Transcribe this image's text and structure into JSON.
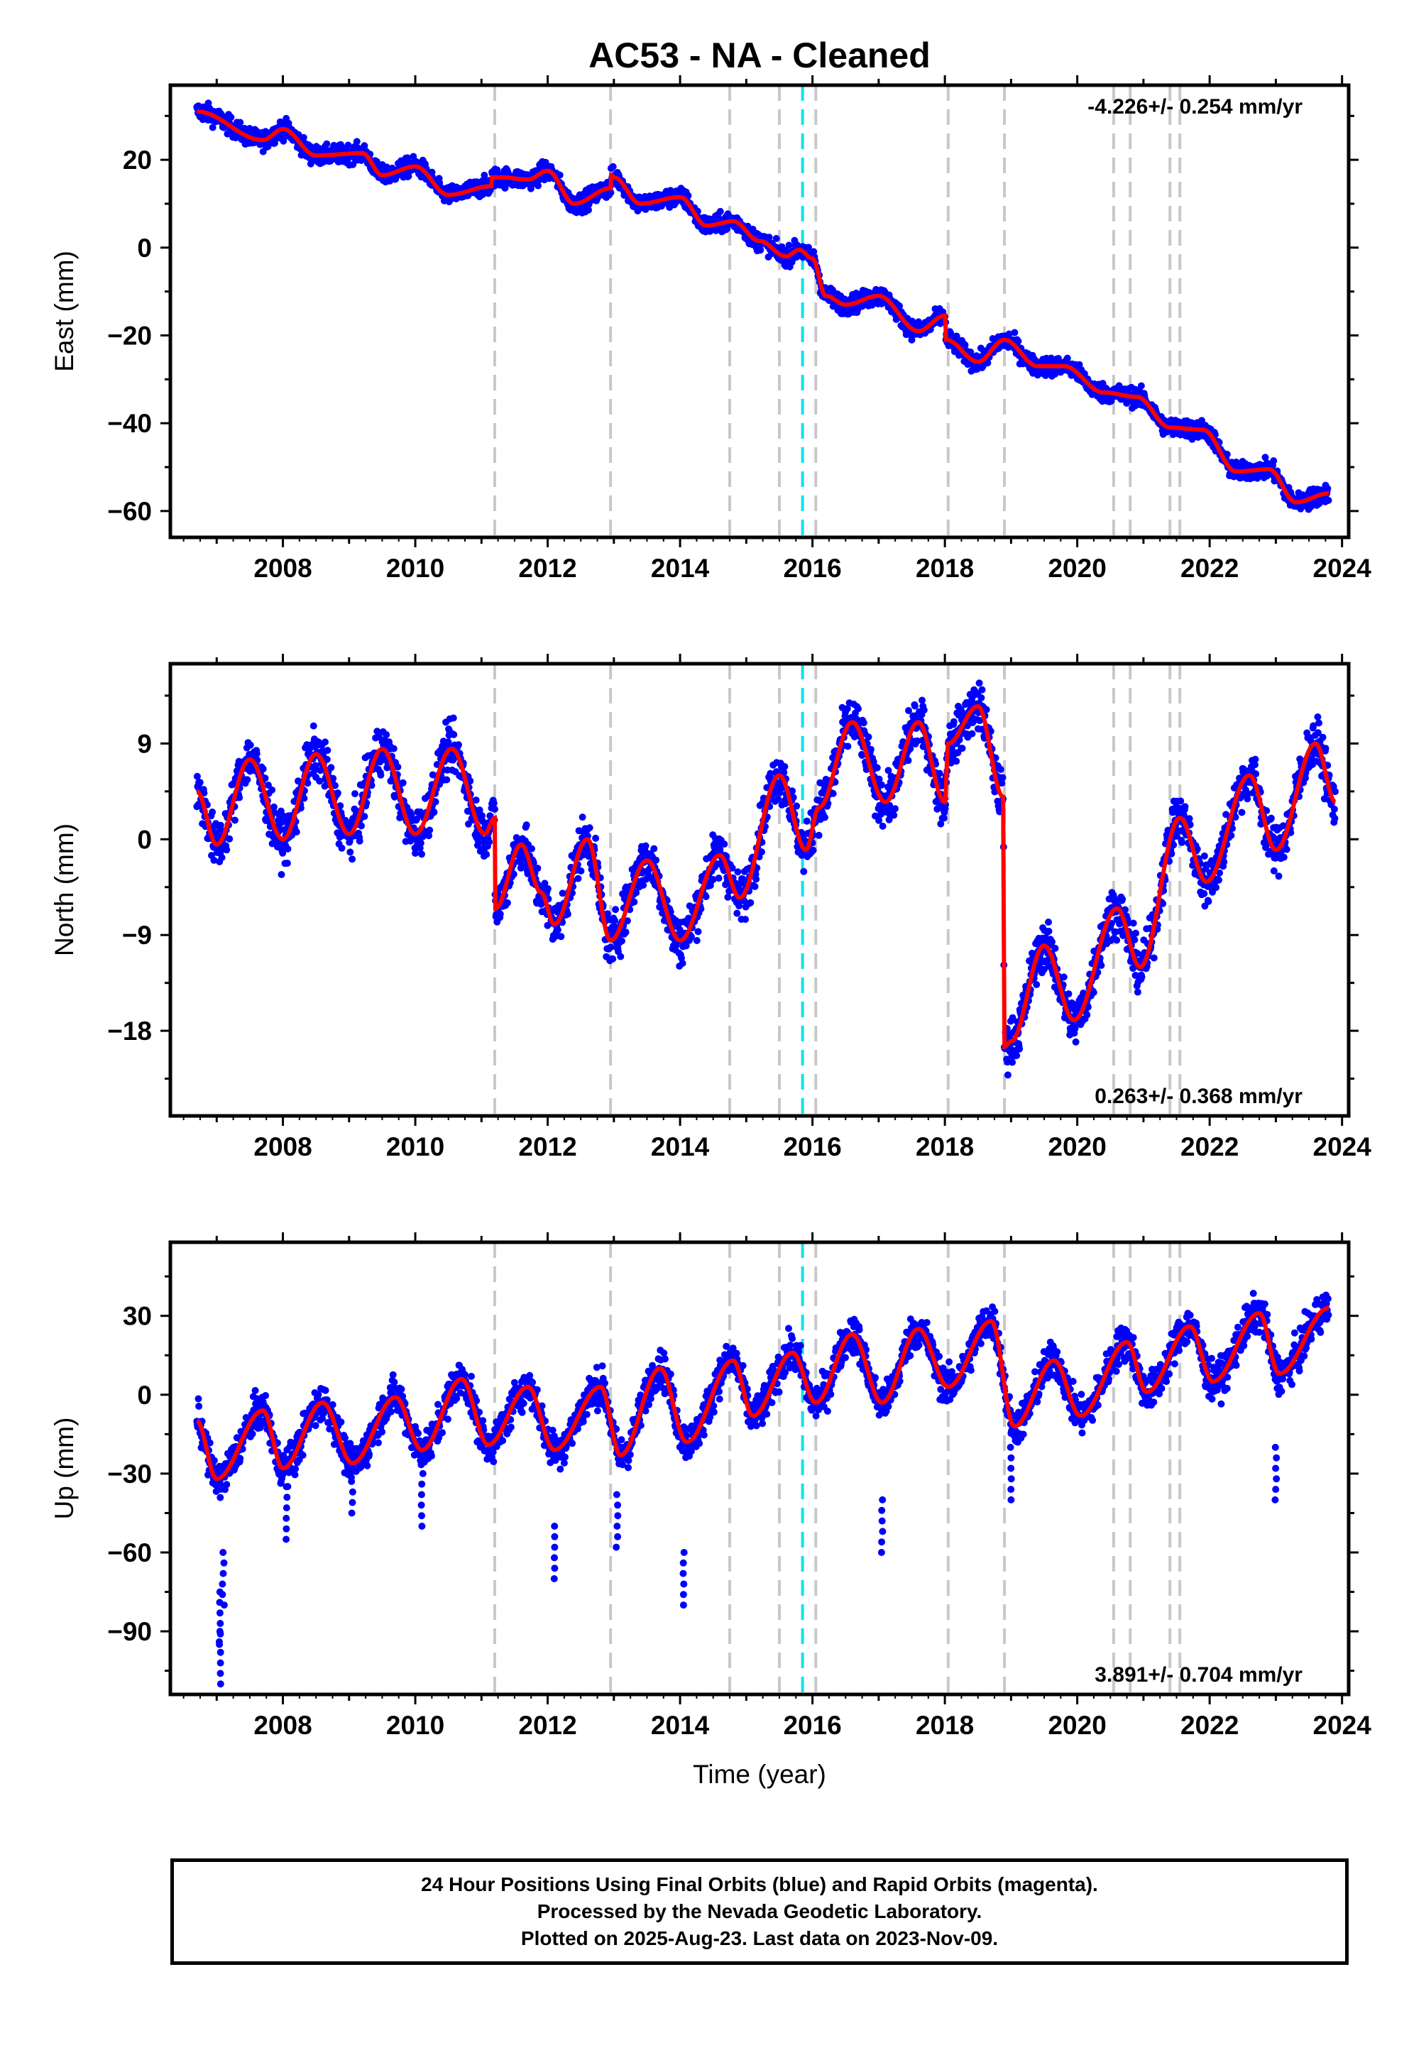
{
  "title": "AC53  - NA - Cleaned",
  "xlabel": "Time (year)",
  "footer": {
    "line1": "24 Hour Positions Using Final Orbits (blue) and Rapid Orbits (magenta).",
    "line2": "Processed by the Nevada Geodetic Laboratory.",
    "line3": "Plotted on 2025-Aug-23. Last data on 2023-Nov-09."
  },
  "colors": {
    "final_orbit_points": "#0000ff",
    "model_fit": "#ff0000",
    "equipment_change_lines": "#c8c8c8",
    "special_event_line": "#00e5ee"
  },
  "chart_data": [
    {
      "type": "scatter",
      "name": "east",
      "ylabel": "East (mm)",
      "rate_label": "-4.226+/- 0.254 mm/yr",
      "xlim": [
        2006.3,
        2024.1
      ],
      "ylim": [
        -66,
        37
      ],
      "yticks": [
        -60,
        -40,
        -20,
        0,
        20
      ],
      "xticks": [
        2008,
        2010,
        2012,
        2014,
        2016,
        2018,
        2020,
        2022,
        2024
      ],
      "fit_knots": [
        [
          2006.7,
          31
        ],
        [
          2007.7,
          24.5
        ],
        [
          2008.0,
          27
        ],
        [
          2008.5,
          21
        ],
        [
          2009.2,
          21.5
        ],
        [
          2009.5,
          16.5
        ],
        [
          2010.0,
          18.5
        ],
        [
          2010.5,
          12
        ],
        [
          2011.15,
          14
        ],
        [
          2011.16,
          16
        ],
        [
          2011.3,
          16
        ],
        [
          2011.7,
          15.5
        ],
        [
          2012.0,
          17.5
        ],
        [
          2012.4,
          10
        ],
        [
          2012.95,
          13.5
        ],
        [
          2012.96,
          16.5
        ],
        [
          2013.0,
          16
        ],
        [
          2013.4,
          10
        ],
        [
          2014.0,
          11.5
        ],
        [
          2014.4,
          5
        ],
        [
          2014.8,
          6
        ],
        [
          2015.2,
          1.5
        ],
        [
          2015.6,
          -2
        ],
        [
          2015.8,
          -0.5
        ],
        [
          2016.0,
          -2.5
        ],
        [
          2016.2,
          -11
        ],
        [
          2016.5,
          -13
        ],
        [
          2017.0,
          -11
        ],
        [
          2017.6,
          -19
        ],
        [
          2018.0,
          -15.5
        ],
        [
          2018.02,
          -21
        ],
        [
          2018.5,
          -26
        ],
        [
          2018.9,
          -21
        ],
        [
          2019.4,
          -27
        ],
        [
          2019.8,
          -27
        ],
        [
          2020.4,
          -33
        ],
        [
          2020.9,
          -34
        ],
        [
          2021.4,
          -41
        ],
        [
          2021.9,
          -41.5
        ],
        [
          2022.4,
          -51
        ],
        [
          2022.9,
          -50.5
        ],
        [
          2023.3,
          -58
        ],
        [
          2023.8,
          -56
        ]
      ],
      "offset_lines": [
        2011.2,
        2012.95,
        2014.75,
        2015.5,
        2016.05,
        2018.05,
        2018.9,
        2020.55,
        2020.8,
        2021.4,
        2021.55
      ],
      "special_lines": [
        2015.85
      ],
      "noise": 1.5
    },
    {
      "type": "scatter",
      "name": "north",
      "ylabel": "North (mm)",
      "rate_label": "0.263+/- 0.368 mm/yr",
      "xlim": [
        2006.3,
        2024.1
      ],
      "ylim": [
        -26,
        16.5
      ],
      "yticks": [
        -18,
        -9,
        0,
        9
      ],
      "xticks": [
        2008,
        2010,
        2012,
        2014,
        2016,
        2018,
        2020,
        2022,
        2024
      ],
      "fit_knots": [
        [
          2006.7,
          4.5
        ],
        [
          2007.0,
          -0.5
        ],
        [
          2007.5,
          7.5
        ],
        [
          2008.0,
          0
        ],
        [
          2008.5,
          8
        ],
        [
          2009.0,
          0.5
        ],
        [
          2009.5,
          8.5
        ],
        [
          2010.0,
          0.5
        ],
        [
          2010.55,
          8.5
        ],
        [
          2011.05,
          0.5
        ],
        [
          2011.2,
          2
        ],
        [
          2011.21,
          -6.5
        ],
        [
          2011.6,
          -0.5
        ],
        [
          2011.9,
          -5
        ],
        [
          2012.1,
          -8
        ],
        [
          2012.6,
          0
        ],
        [
          2012.95,
          -9.5
        ],
        [
          2013.5,
          -2
        ],
        [
          2014.0,
          -9.5
        ],
        [
          2014.6,
          -1.5
        ],
        [
          2014.9,
          -5.5
        ],
        [
          2015.5,
          6
        ],
        [
          2015.9,
          -1
        ],
        [
          2016.1,
          3
        ],
        [
          2016.6,
          11
        ],
        [
          2017.1,
          3.5
        ],
        [
          2017.6,
          11
        ],
        [
          2018.0,
          3.5
        ],
        [
          2018.05,
          9
        ],
        [
          2018.5,
          12.5
        ],
        [
          2018.88,
          4
        ],
        [
          2018.9,
          -19.5
        ],
        [
          2019.0,
          -19
        ],
        [
          2019.5,
          -10
        ],
        [
          2019.95,
          -17
        ],
        [
          2020.6,
          -6.5
        ],
        [
          2020.95,
          -12
        ],
        [
          2021.55,
          2
        ],
        [
          2021.95,
          -4
        ],
        [
          2022.6,
          6
        ],
        [
          2023.0,
          -1
        ],
        [
          2023.6,
          9
        ],
        [
          2023.9,
          3.5
        ]
      ],
      "offset_lines": [
        2011.2,
        2012.95,
        2014.75,
        2015.5,
        2016.05,
        2018.05,
        2018.9,
        2020.55,
        2020.8,
        2021.4,
        2021.55
      ],
      "special_lines": [
        2015.85
      ],
      "noise": 1.6
    },
    {
      "type": "scatter",
      "name": "up",
      "ylabel": "Up (mm)",
      "rate_label": "3.891+/- 0.704 mm/yr",
      "xlim": [
        2006.3,
        2024.1
      ],
      "ylim": [
        -114,
        58
      ],
      "yticks": [
        -90,
        -60,
        -30,
        0,
        30
      ],
      "xticks": [
        2008,
        2010,
        2012,
        2014,
        2016,
        2018,
        2020,
        2022,
        2024
      ],
      "fit_knots": [
        [
          2006.7,
          -10
        ],
        [
          2007.0,
          -32
        ],
        [
          2007.7,
          -6
        ],
        [
          2008.0,
          -28
        ],
        [
          2008.6,
          -3
        ],
        [
          2009.05,
          -26
        ],
        [
          2009.7,
          -1
        ],
        [
          2010.1,
          -21
        ],
        [
          2010.7,
          6
        ],
        [
          2011.1,
          -19
        ],
        [
          2011.7,
          3
        ],
        [
          2012.1,
          -21
        ],
        [
          2012.8,
          3
        ],
        [
          2013.1,
          -23
        ],
        [
          2013.7,
          10
        ],
        [
          2014.1,
          -18
        ],
        [
          2014.8,
          13
        ],
        [
          2015.1,
          -8
        ],
        [
          2015.7,
          16
        ],
        [
          2016.05,
          -3
        ],
        [
          2016.6,
          23
        ],
        [
          2017.05,
          -3
        ],
        [
          2017.6,
          25
        ],
        [
          2018.05,
          3
        ],
        [
          2018.7,
          28
        ],
        [
          2019.05,
          -12
        ],
        [
          2019.65,
          13
        ],
        [
          2020.05,
          -8
        ],
        [
          2020.75,
          20
        ],
        [
          2021.05,
          1
        ],
        [
          2021.7,
          26
        ],
        [
          2022.05,
          5
        ],
        [
          2022.75,
          31
        ],
        [
          2023.05,
          8
        ],
        [
          2023.8,
          33
        ]
      ],
      "offset_lines": [
        2011.2,
        2012.95,
        2014.75,
        2015.5,
        2016.05,
        2018.05,
        2018.9,
        2020.55,
        2020.8,
        2021.4,
        2021.55
      ],
      "special_lines": [
        2015.85
      ],
      "noise": 5
    }
  ]
}
